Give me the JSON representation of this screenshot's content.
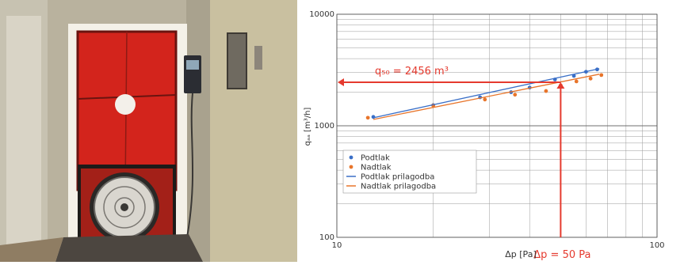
{
  "photo": {
    "subject": "blower door test setup in doorway: red fabric panel with fan and pressure gauge"
  },
  "chart_data": {
    "type": "scatter",
    "x_scale": "log",
    "y_scale": "log",
    "xlim": [
      10,
      100
    ],
    "ylim": [
      100,
      10000
    ],
    "x_ticks": [
      "10",
      "100"
    ],
    "y_ticks": [
      "100",
      "1000",
      "10000"
    ],
    "xlabel": "Δp [Pa]",
    "ylabel": "qₐₐ [m³/h]",
    "grid": true,
    "legend_position": "lower-left",
    "series": [
      {
        "name": "Podtlak",
        "kind": "points",
        "color": "#3a6fc7",
        "x": [
          13,
          20,
          28,
          35,
          40,
          48,
          55,
          60,
          65
        ],
        "y": [
          1200,
          1530,
          1800,
          2000,
          2200,
          2600,
          2800,
          3050,
          3200
        ]
      },
      {
        "name": "Nadtlak",
        "kind": "points",
        "color": "#e8752b",
        "x": [
          12.5,
          20,
          29,
          36,
          45,
          50,
          56,
          62,
          67
        ],
        "y": [
          1180,
          1520,
          1720,
          1900,
          2050,
          2300,
          2500,
          2650,
          2850
        ]
      },
      {
        "name": "Podtlak prilagodba",
        "kind": "line",
        "color": "#3a6fc7",
        "x": [
          13,
          66
        ],
        "y": [
          1180,
          3250
        ]
      },
      {
        "name": "Nadtlak prilagodba",
        "kind": "line",
        "color": "#e8752b",
        "x": [
          13,
          66
        ],
        "y": [
          1140,
          2900
        ]
      }
    ],
    "annotations": {
      "q50_label": "q₅₀ = 2456 m³",
      "q50_value": 2456,
      "dp_label": "Δp = 50 Pa",
      "dp_value": 50,
      "color": "#e53a2e"
    }
  }
}
